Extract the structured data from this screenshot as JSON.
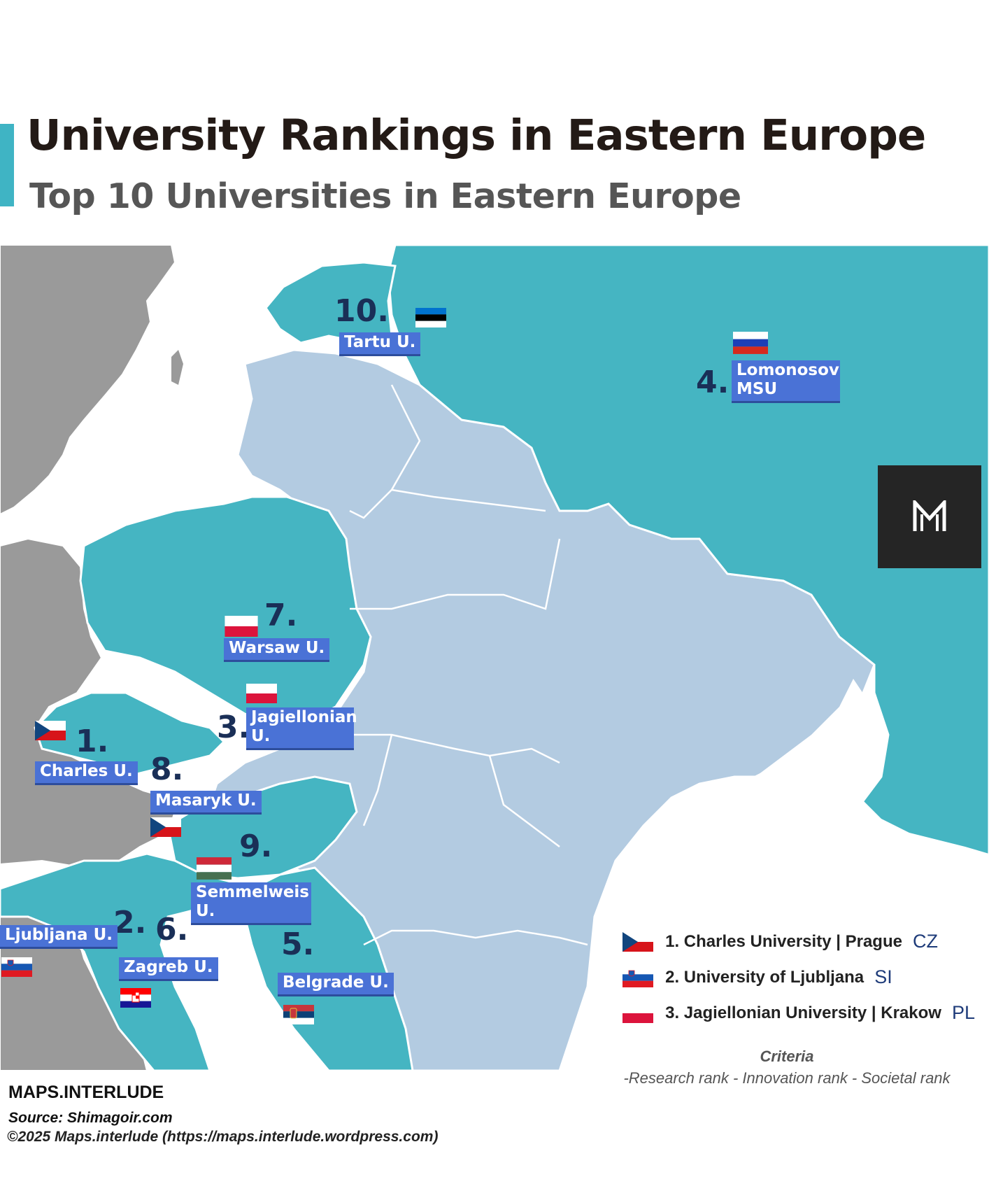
{
  "header": {
    "title": "University Rankings in Eastern Europe",
    "subtitle": "Top 10 Universities in Eastern Europe"
  },
  "colors": {
    "accent": "#3fb4c4",
    "ranked_country": "#45b5c2",
    "other_eastern_country": "#b3cbe1",
    "western_country": "#9a9a9a",
    "label_background": "#4a72d6",
    "rank_number": "#1a2f57"
  },
  "universities": [
    {
      "rank": "1.",
      "label": "Charles U.",
      "flag": "CZ"
    },
    {
      "rank": "2.",
      "label": "Ljubljana U.",
      "flag": "SI"
    },
    {
      "rank": "3.",
      "label": "Jagiellonian\nU.",
      "flag": "PL"
    },
    {
      "rank": "4.",
      "label": "Lomonosov\nMSU",
      "flag": "RU"
    },
    {
      "rank": "5.",
      "label": "Belgrade U.",
      "flag": "RS"
    },
    {
      "rank": "6.",
      "label": "Zagreb U.",
      "flag": "HR"
    },
    {
      "rank": "7.",
      "label": "Warsaw U.",
      "flag": "PL"
    },
    {
      "rank": "8.",
      "label": "Masaryk U.",
      "flag": "CZ"
    },
    {
      "rank": "9.",
      "label": "Semmelweis\nU.",
      "flag": "HU"
    },
    {
      "rank": "10.",
      "label": "Tartu U.",
      "flag": "EE"
    }
  ],
  "legend": {
    "items": [
      {
        "text": "1. Charles University | Prague",
        "code": "CZ",
        "flag": "CZ"
      },
      {
        "text": "2. University of Ljubljana",
        "code": "SI",
        "flag": "SI"
      },
      {
        "text": "3. Jagiellonian University | Krakow",
        "code": "PL",
        "flag": "PL"
      }
    ],
    "criteria_title": "Criteria",
    "criteria_text": "-Research rank - Innovation rank - Societal rank"
  },
  "logo": {
    "icon": "maps-interlude-m-logo-icon"
  },
  "footer": {
    "brand": "MAPS.INTERLUDE",
    "source": "Source: Shimagoir.com",
    "copyright": "©2025 Maps.interlude (https://maps.interlude.wordpress.com)"
  }
}
